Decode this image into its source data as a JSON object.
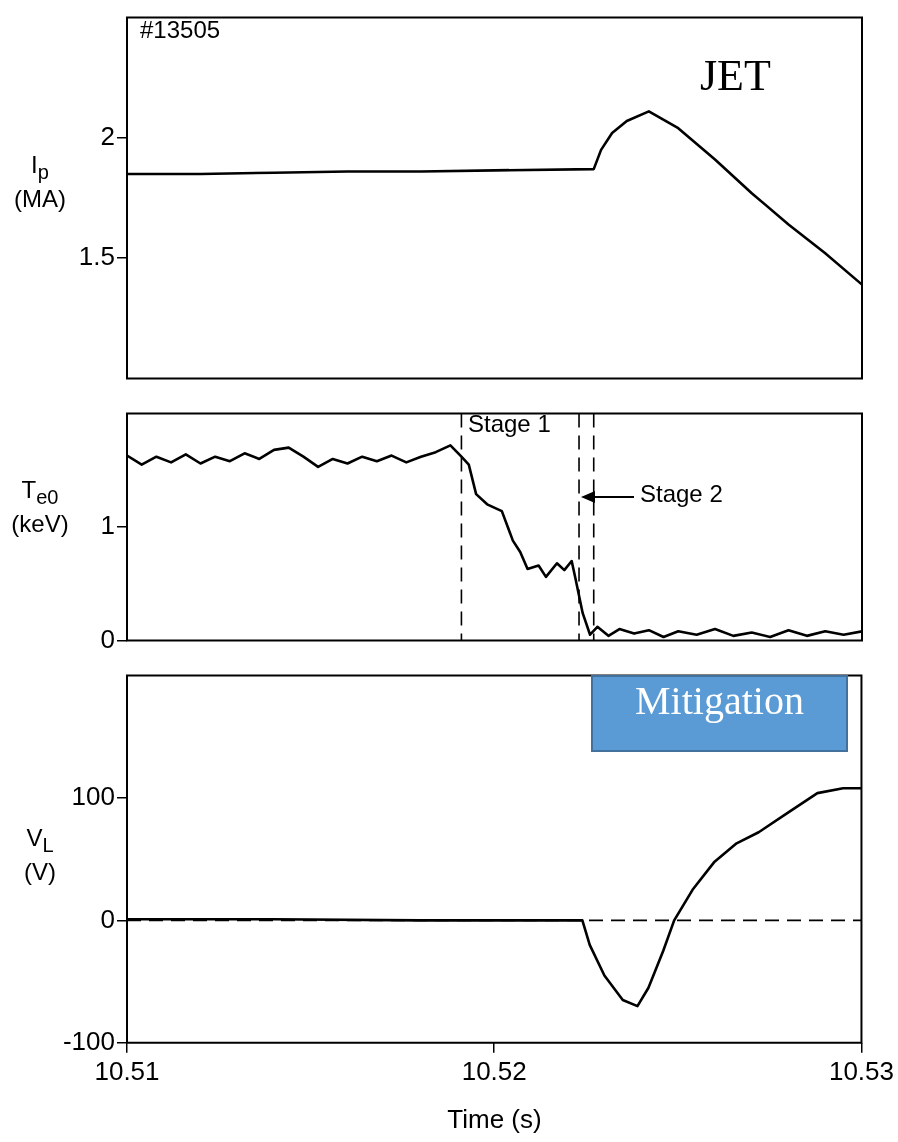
{
  "chart_data": [
    {
      "type": "line",
      "ylabel": "I$_{p}$ (MA)",
      "xlim": [
        10.51,
        10.53
      ],
      "xticks": [
        10.51,
        10.52,
        10.53
      ],
      "ylim": [
        1.0,
        2.5
      ],
      "yticks": [
        1.5,
        2
      ],
      "tick_labels": "y",
      "grid": false,
      "legend": false,
      "marker": "none",
      "annotations": [
        "#13505",
        "JET"
      ],
      "series": [
        {
          "color": "#000000",
          "x": [
            10.51,
            10.512,
            10.514,
            10.516,
            10.518,
            10.52,
            10.5227,
            10.5229,
            10.5232,
            10.5236,
            10.5242,
            10.525,
            10.526,
            10.527,
            10.528,
            10.529,
            10.53
          ],
          "values": [
            1.85,
            1.85,
            1.855,
            1.86,
            1.86,
            1.865,
            1.87,
            1.95,
            2.02,
            2.07,
            2.11,
            2.04,
            1.91,
            1.77,
            1.64,
            1.52,
            1.39
          ]
        }
      ]
    },
    {
      "type": "line",
      "ylabel": "T$_{e0}$ (keV)",
      "xlim": [
        10.51,
        10.53
      ],
      "xticks": [
        10.51,
        10.52,
        10.53
      ],
      "ylim": [
        0,
        2
      ],
      "yticks": [
        0,
        1
      ],
      "tick_labels": "y",
      "grid": false,
      "legend": false,
      "marker": "none",
      "ref_lines": [
        {
          "axis": "x",
          "value": 10.5191,
          "line_style": "dashed"
        },
        {
          "axis": "x",
          "value": 10.5223,
          "line_style": "dashed"
        },
        {
          "axis": "x",
          "value": 10.5227,
          "line_style": "dashed"
        }
      ],
      "annotations": [
        "Stage 1",
        "Stage 2"
      ],
      "series": [
        {
          "color": "#000000",
          "x": [
            10.51,
            10.5104,
            10.5108,
            10.5112,
            10.5116,
            10.512,
            10.5124,
            10.5128,
            10.5132,
            10.5136,
            10.514,
            10.5144,
            10.5148,
            10.5152,
            10.5156,
            10.516,
            10.5164,
            10.5168,
            10.5172,
            10.5176,
            10.518,
            10.5184,
            10.5188,
            10.5191,
            10.5193,
            10.5195,
            10.5198,
            10.5202,
            10.5205,
            10.5207,
            10.5209,
            10.5212,
            10.5214,
            10.5217,
            10.5219,
            10.5221,
            10.5222,
            10.5224,
            10.5226,
            10.5228,
            10.5231,
            10.5234,
            10.5238,
            10.5242,
            10.5246,
            10.525,
            10.5255,
            10.526,
            10.5265,
            10.527,
            10.5275,
            10.528,
            10.5285,
            10.529,
            10.5295,
            10.53
          ],
          "values": [
            1.63,
            1.55,
            1.62,
            1.57,
            1.64,
            1.56,
            1.62,
            1.58,
            1.65,
            1.6,
            1.68,
            1.7,
            1.62,
            1.53,
            1.6,
            1.56,
            1.62,
            1.58,
            1.63,
            1.57,
            1.62,
            1.66,
            1.72,
            1.62,
            1.55,
            1.29,
            1.2,
            1.14,
            0.88,
            0.78,
            0.63,
            0.66,
            0.56,
            0.68,
            0.62,
            0.7,
            0.55,
            0.24,
            0.05,
            0.12,
            0.04,
            0.1,
            0.06,
            0.09,
            0.03,
            0.08,
            0.05,
            0.1,
            0.04,
            0.07,
            0.03,
            0.09,
            0.04,
            0.08,
            0.05,
            0.08
          ]
        }
      ]
    },
    {
      "type": "line",
      "ylabel": "V$_{L}$ (V)",
      "xlabel": "Time (s)",
      "xlim": [
        10.51,
        10.53
      ],
      "xticks": [
        10.51,
        10.52,
        10.53
      ],
      "ylim": [
        -100,
        200
      ],
      "yticks": [
        -100,
        0,
        100
      ],
      "grid": false,
      "legend": false,
      "marker": "none",
      "annotations": [
        "Mitigation"
      ],
      "ref_lines": [
        {
          "axis": "y",
          "value": 0,
          "line_style": "dashed"
        }
      ],
      "series": [
        {
          "color": "#000000",
          "x": [
            10.51,
            10.514,
            10.518,
            10.522,
            10.5224,
            10.5226,
            10.523,
            10.5235,
            10.5239,
            10.5242,
            10.5246,
            10.5249,
            10.5254,
            10.526,
            10.5266,
            10.5272,
            10.528,
            10.5288,
            10.5295,
            10.53
          ],
          "values": [
            1,
            1,
            0,
            0,
            0,
            -20,
            -45,
            -65,
            -70,
            -55,
            -25,
            0,
            25,
            48,
            63,
            72,
            88,
            104,
            108,
            108
          ]
        }
      ]
    }
  ]
}
